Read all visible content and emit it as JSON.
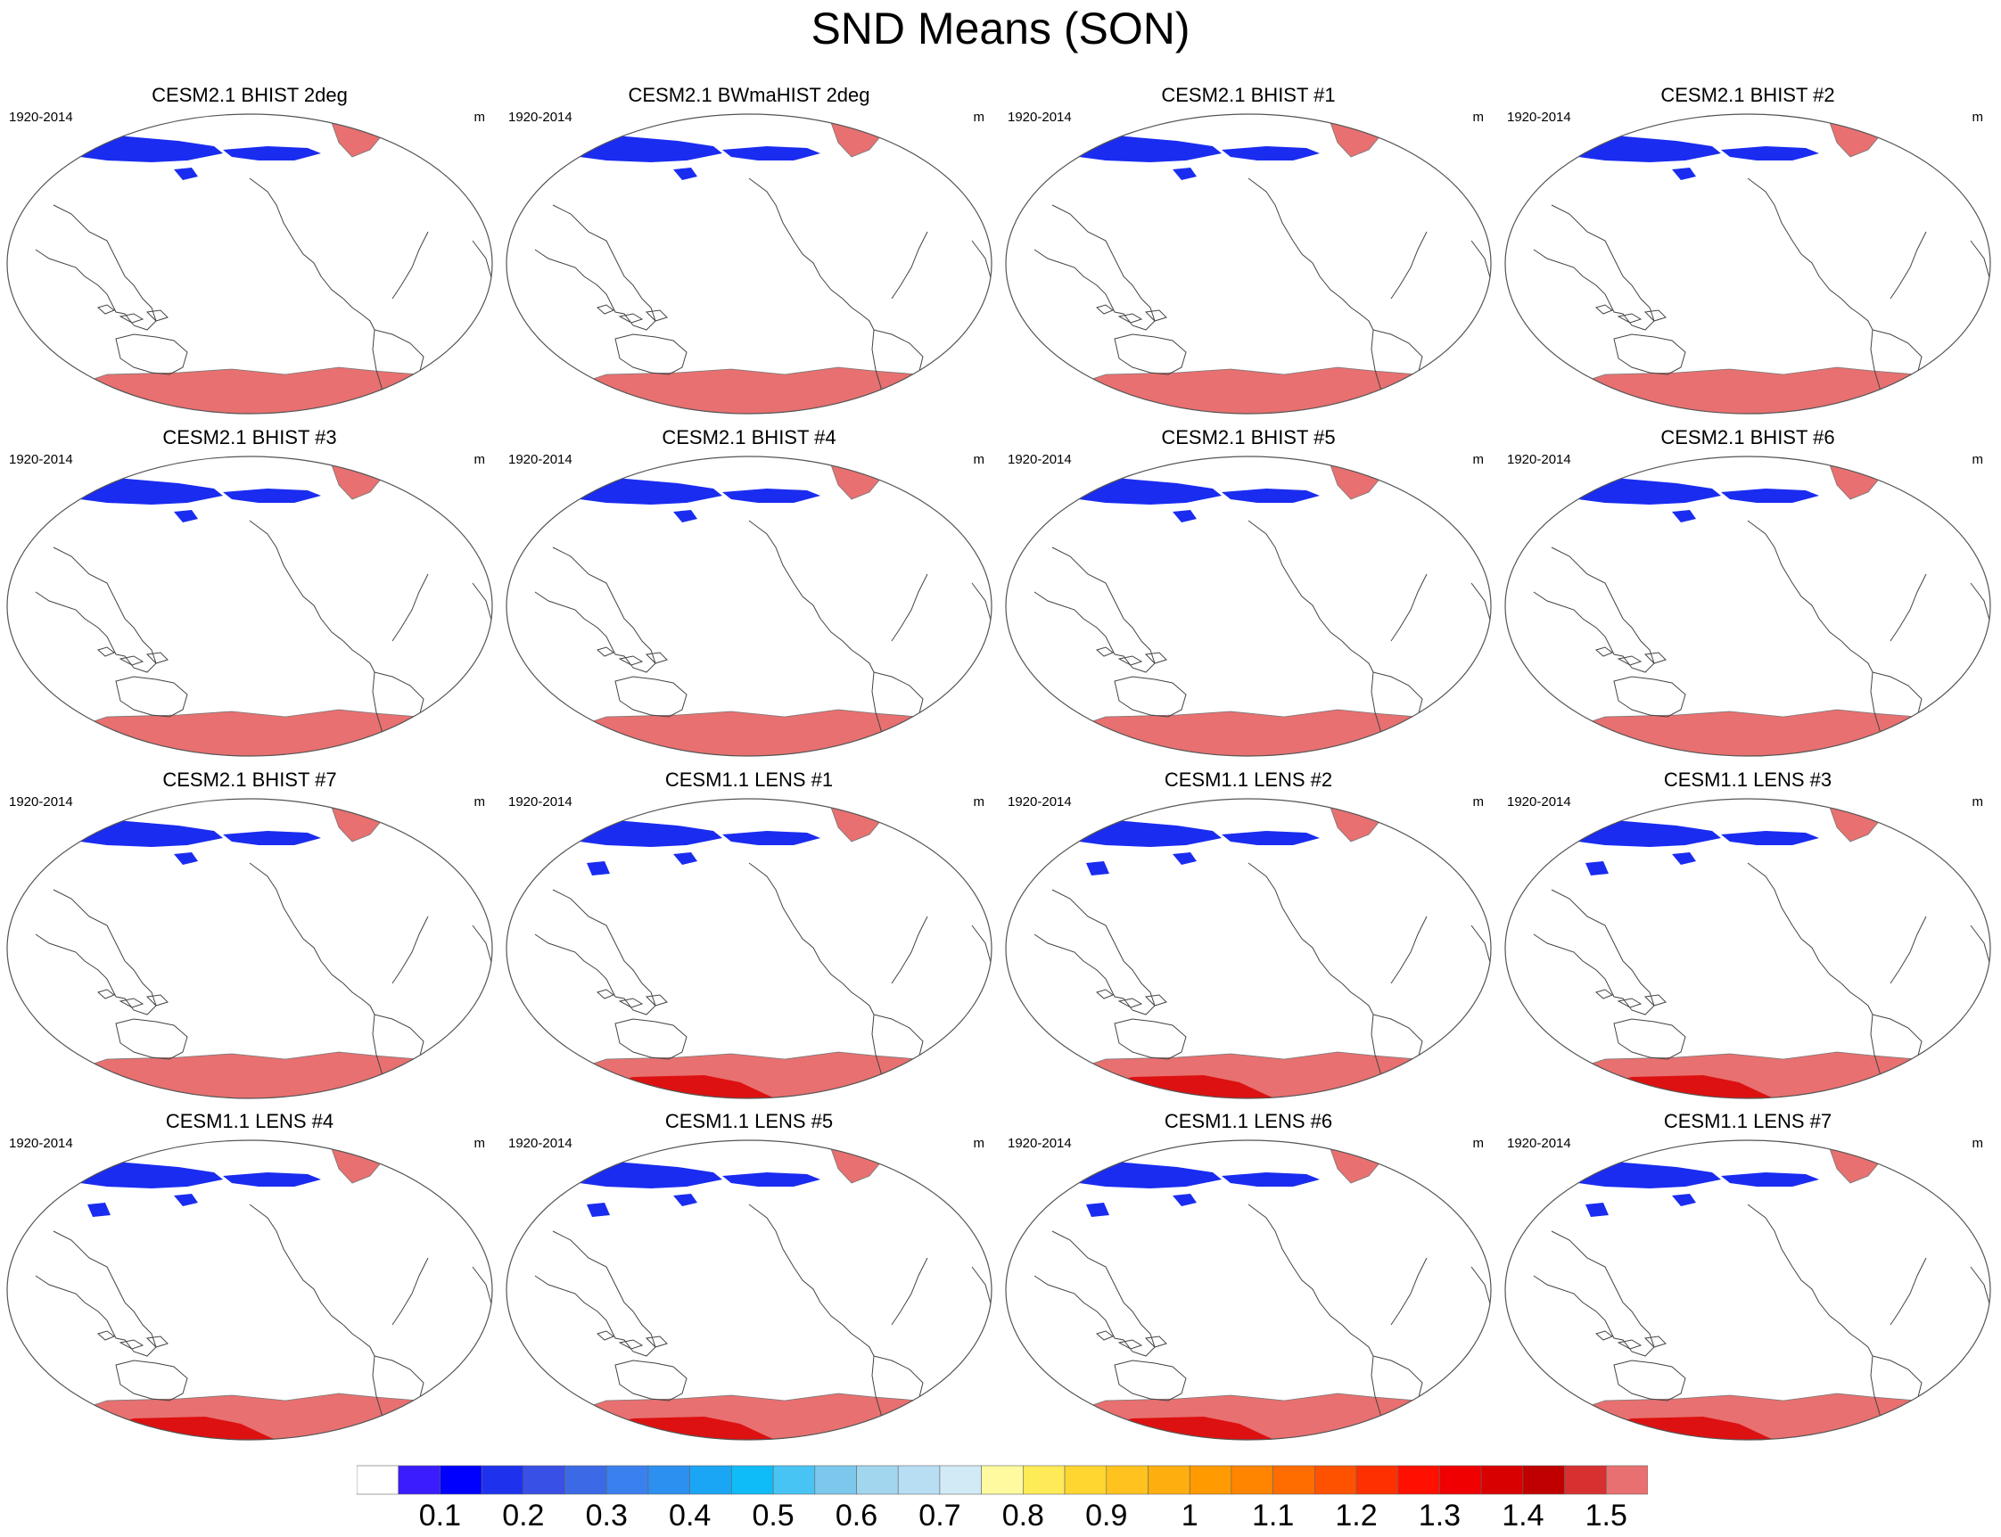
{
  "title": "SND Means (SON)",
  "panels": [
    {
      "title": "CESM2.1 BHIST 2deg",
      "period": "1920-2014",
      "units": "m",
      "variant": "cesm2"
    },
    {
      "title": "CESM2.1 BWmaHIST 2deg",
      "period": "1920-2014",
      "units": "m",
      "variant": "cesm2"
    },
    {
      "title": "CESM2.1 BHIST #1",
      "period": "1920-2014",
      "units": "m",
      "variant": "cesm2"
    },
    {
      "title": "CESM2.1 BHIST #2",
      "period": "1920-2014",
      "units": "m",
      "variant": "cesm2"
    },
    {
      "title": "CESM2.1 BHIST #3",
      "period": "1920-2014",
      "units": "m",
      "variant": "cesm2"
    },
    {
      "title": "CESM2.1 BHIST #4",
      "period": "1920-2014",
      "units": "m",
      "variant": "cesm2"
    },
    {
      "title": "CESM2.1 BHIST #5",
      "period": "1920-2014",
      "units": "m",
      "variant": "cesm2"
    },
    {
      "title": "CESM2.1 BHIST #6",
      "period": "1920-2014",
      "units": "m",
      "variant": "cesm2"
    },
    {
      "title": "CESM2.1 BHIST #7",
      "period": "1920-2014",
      "units": "m",
      "variant": "cesm2"
    },
    {
      "title": "CESM1.1 LENS #1",
      "period": "1920-2014",
      "units": "m",
      "variant": "cesm1"
    },
    {
      "title": "CESM1.1 LENS #2",
      "period": "1920-2014",
      "units": "m",
      "variant": "cesm1"
    },
    {
      "title": "CESM1.1 LENS #3",
      "period": "1920-2014",
      "units": "m",
      "variant": "cesm1"
    },
    {
      "title": "CESM1.1 LENS #4",
      "period": "1920-2014",
      "units": "m",
      "variant": "cesm1"
    },
    {
      "title": "CESM1.1 LENS #5",
      "period": "1920-2014",
      "units": "m",
      "variant": "cesm1"
    },
    {
      "title": "CESM1.1 LENS #6",
      "period": "1920-2014",
      "units": "m",
      "variant": "cesm1"
    },
    {
      "title": "CESM1.1 LENS #7",
      "period": "1920-2014",
      "units": "m",
      "variant": "cesm1"
    }
  ],
  "colorbar": {
    "labels": [
      "0.1",
      "0.2",
      "0.3",
      "0.4",
      "0.5",
      "0.6",
      "0.7",
      "0.8",
      "0.9",
      "1",
      "1.1",
      "1.2",
      "1.3",
      "1.4",
      "1.5"
    ],
    "colors": [
      "#ffffff",
      "#3a1cff",
      "#0000ff",
      "#1e32ee",
      "#3850e6",
      "#3c6ae6",
      "#3a80ee",
      "#2b90f0",
      "#1aa6f4",
      "#10bcf8",
      "#48c4f4",
      "#7cc8ec",
      "#a2d6ee",
      "#b8def4",
      "#d2eaf6",
      "#fffaa0",
      "#ffea58",
      "#ffd630",
      "#ffc21e",
      "#ffae10",
      "#ff9a00",
      "#ff8400",
      "#ff6c00",
      "#ff5200",
      "#ff3000",
      "#ff1000",
      "#f00000",
      "#d80000",
      "#c00000",
      "#d83030",
      "#e87070"
    ]
  },
  "legend_colors": {
    "antarctica": "#e87070",
    "antarctica_deep": "#dd1111",
    "greenland": "#e87070",
    "eurasia_snow": "#1a2cf0"
  }
}
